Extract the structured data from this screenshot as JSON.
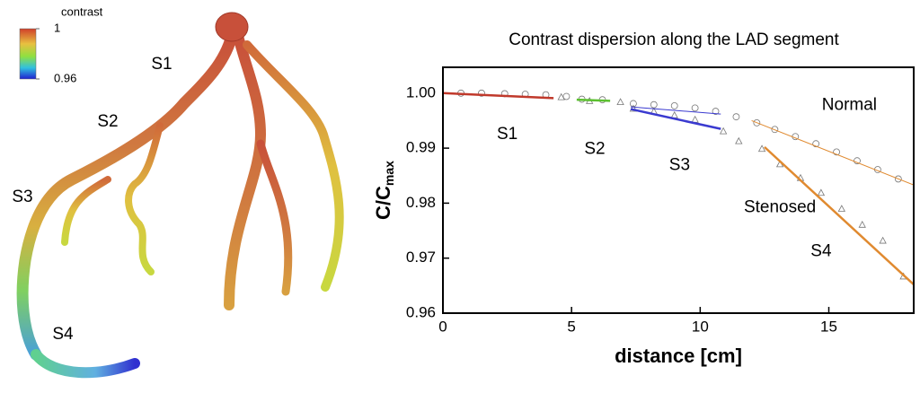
{
  "rendering": {
    "colorbar": {
      "title": "contrast",
      "lim": [
        0.96,
        1
      ],
      "ticks": [
        1,
        0.96
      ]
    },
    "segment_labels": [
      "S1",
      "S2",
      "S3",
      "S4"
    ]
  },
  "chart_data": {
    "type": "scatter",
    "title": "Contrast dispersion along the LAD segment",
    "xlabel": "distance [cm]",
    "ylabel": {
      "text": "C/C",
      "subscript": "max"
    },
    "xlim": [
      0,
      18.3
    ],
    "ylim": [
      0.96,
      1.0047
    ],
    "xticks": [
      0,
      5,
      10,
      15
    ],
    "yticks": [
      0.96,
      0.97,
      0.98,
      0.99,
      {
        "value": 1,
        "label": "1.00"
      }
    ],
    "annotations": [
      {
        "text": "S1",
        "x": 2.5,
        "y": 0.9925,
        "color": "#000000"
      },
      {
        "text": "S2",
        "x": 5.9,
        "y": 0.9898,
        "color": "#000000"
      },
      {
        "text": "S3",
        "x": 9.2,
        "y": 0.9868,
        "color": "#000000"
      },
      {
        "text": "S4",
        "x": 14.7,
        "y": 0.9712,
        "color": "#000000"
      },
      {
        "text": "Normal",
        "x": 15.8,
        "y": 0.9978,
        "color": "#2222dd"
      },
      {
        "text": "Stenosed",
        "x": 13.1,
        "y": 0.9792,
        "color": "#d04030"
      }
    ],
    "series": [
      {
        "name": "Normal",
        "style": "marker",
        "marker": "circle",
        "color": "#777777",
        "x": [
          0.7,
          1.5,
          2.4,
          3.2,
          4.0,
          4.8,
          5.4,
          6.2,
          7.4,
          8.2,
          9.0,
          9.8,
          10.6,
          11.4,
          12.2,
          12.9,
          13.7,
          14.5,
          15.3,
          16.1,
          16.9,
          17.7
        ],
        "values": [
          1.0,
          1.0,
          0.9999,
          0.9998,
          0.9997,
          0.9994,
          0.9989,
          0.9988,
          0.9981,
          0.9979,
          0.9977,
          0.9973,
          0.9967,
          0.9957,
          0.9946,
          0.9934,
          0.9921,
          0.9908,
          0.9893,
          0.9877,
          0.9861,
          0.9844
        ]
      },
      {
        "name": "Stenosed",
        "style": "marker",
        "marker": "triangle",
        "color": "#777777",
        "x": [
          4.6,
          5.7,
          6.9,
          7.4,
          8.2,
          9.0,
          9.8,
          10.9,
          11.5,
          12.4,
          13.1,
          13.9,
          14.7,
          15.5,
          16.3,
          17.1,
          17.9
        ],
        "values": [
          0.9993,
          0.9986,
          0.9984,
          0.9972,
          0.9967,
          0.996,
          0.9952,
          0.9931,
          0.9913,
          0.9899,
          0.9871,
          0.9846,
          0.9819,
          0.979,
          0.9761,
          0.9732,
          0.9667
        ]
      },
      {
        "name": "S1 fit",
        "style": "line",
        "width": 2.5,
        "color": "#c0392b",
        "x": [
          0,
          4.3
        ],
        "values": [
          1.0,
          0.9991
        ]
      },
      {
        "name": "S2 fit",
        "style": "line",
        "width": 2.5,
        "color": "#5cc030",
        "x": [
          5.2,
          6.5
        ],
        "values": [
          0.9988,
          0.9986
        ]
      },
      {
        "name": "S3 fit",
        "style": "line",
        "width": 2.5,
        "color": "#3a3ad0",
        "x": [
          7.3,
          10.8
        ],
        "values": [
          0.9971,
          0.9935
        ]
      },
      {
        "name": "S3 normal fit",
        "style": "line",
        "width": 1,
        "color": "#3a3ad0",
        "x": [
          7.3,
          10.8
        ],
        "values": [
          0.9975,
          0.9962
        ]
      },
      {
        "name": "S4 fit",
        "style": "line",
        "width": 2.5,
        "color": "#e08a30",
        "x": [
          12.5,
          18.3
        ],
        "values": [
          0.9902,
          0.9652
        ]
      },
      {
        "name": "S4 normal fit",
        "style": "line",
        "width": 1,
        "color": "#e08a30",
        "x": [
          12.0,
          18.3
        ],
        "values": [
          0.995,
          0.9833
        ]
      }
    ]
  }
}
